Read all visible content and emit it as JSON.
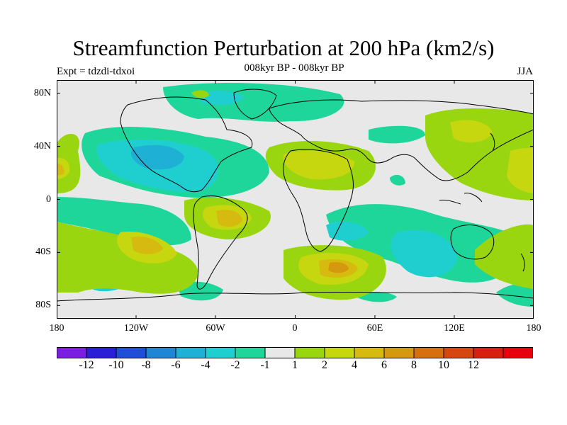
{
  "title": "Streamfunction Perturbation at 200 hPa (km2/s)",
  "subtitle": "008kyr BP - 008kyr BP",
  "left_label": "Expt = tdzdi-tdxoi",
  "right_label": "JJA",
  "lat_ticks": [
    "80N",
    "40N",
    "0",
    "40S",
    "80S"
  ],
  "lon_ticks": [
    "180",
    "120W",
    "60W",
    "0",
    "60E",
    "120E",
    "180"
  ],
  "colorbar": {
    "colors": [
      "#7a1fe0",
      "#2a1fd6",
      "#1f4fd6",
      "#1f86d6",
      "#1fb0d6",
      "#1fcfcf",
      "#1fd69a",
      "#e8e8e8",
      "#9ad60f",
      "#c6d60f",
      "#d6ba0f",
      "#d6980f",
      "#d6700f",
      "#d6470f",
      "#d61f0f",
      "#e8000f"
    ],
    "labels": [
      "-12",
      "-10",
      "-8",
      "-6",
      "-4",
      "-2",
      "-1",
      "1",
      "2",
      "4",
      "6",
      "8",
      "10",
      "12"
    ]
  }
}
